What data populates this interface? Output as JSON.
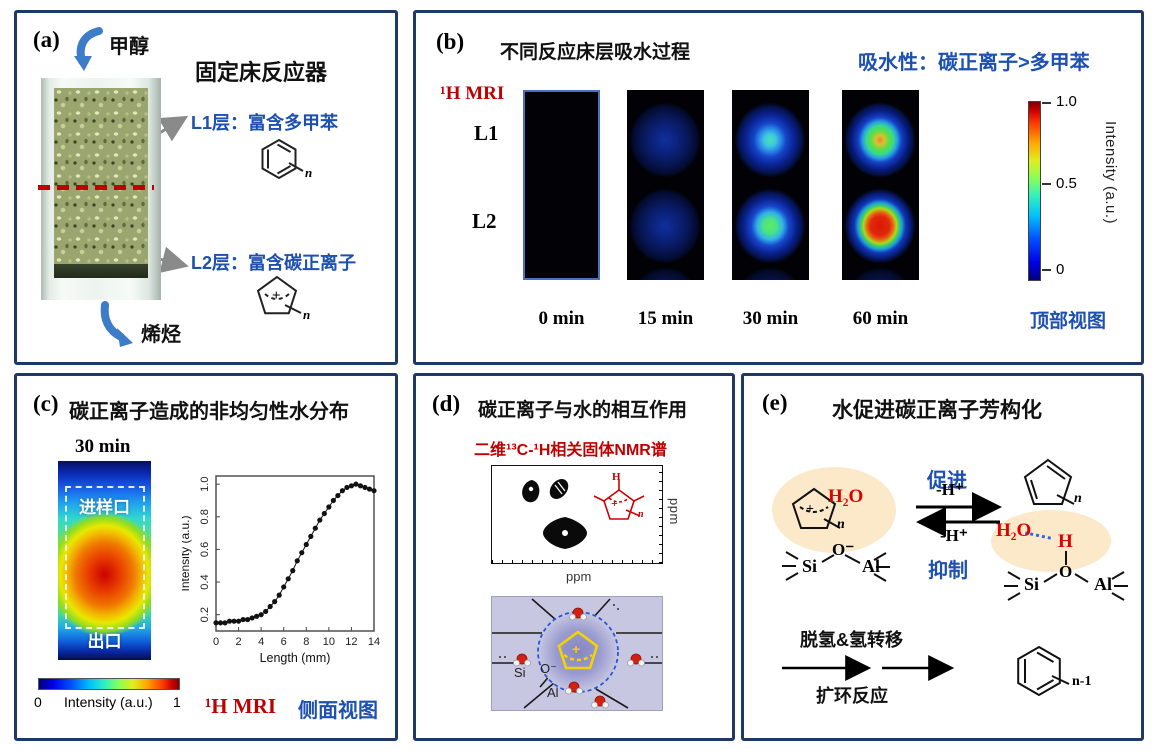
{
  "colors": {
    "panel_border": "#1f3864",
    "blue_text": "#1d50b0",
    "red_text": "#c00000",
    "h2o_red": "#e00000",
    "peach_ellipse": "#fbe9ca",
    "lavender_box": "#c7c7e2",
    "arrow_blue": "#3d7cc9",
    "dashed_line_red": "#c00000"
  },
  "panels": {
    "a": {
      "label": "(a)",
      "inlet": "甲醇",
      "title": "固定床反应器",
      "layer1": "L1层：富含多甲苯",
      "layer2": "L2层：富含碳正离子",
      "outlet": "烯烃",
      "benzene_n": "n",
      "cation_plus": "+",
      "cation_n": "n"
    },
    "b": {
      "label": "(b)",
      "title": "不同反应床层吸水过程",
      "annotation": "吸水性：碳正离子>多甲苯",
      "mri": "¹H MRI",
      "rows": [
        "L1",
        "L2"
      ],
      "times": [
        "0 min",
        "15 min",
        "30 min",
        "60 min"
      ],
      "colorbar": {
        "ticks": [
          "1.0",
          "0.5",
          "0"
        ],
        "label": "Intensity (a.u.)"
      },
      "view": "顶部视图"
    },
    "c": {
      "label": "(c)",
      "title": "碳正离子造成的非均匀性水分布",
      "time": "30 min",
      "inlet": "进样口",
      "outlet": "出口",
      "colorbar": {
        "min": "0",
        "label": "Intensity (a.u.)",
        "max": "1"
      },
      "mri": "¹H MRI",
      "view": "侧面视图"
    },
    "d": {
      "label": "(d)",
      "title": "碳正离子与水的相互作用",
      "subtitle": "二维¹³C-¹H相关固体NMR谱",
      "ppm_x": "ppm",
      "ppm_y": "ppm",
      "structure": {
        "h": "H",
        "plus": "+",
        "n": "n"
      },
      "cartoon": {
        "si": "Si",
        "o": "O⁻",
        "al": "Al",
        "plus": "+"
      }
    },
    "e": {
      "label": "(e)",
      "title": "水促进碳正离子芳构化",
      "promote": "促进",
      "inhibit": "抑制",
      "deproton_top": "-H⁺",
      "deproton_bottom": "-H⁺",
      "left": {
        "h2o": "H₂O",
        "plus": "+",
        "n": "n",
        "o": "O⁻",
        "si": "Si",
        "al": "Al"
      },
      "right": {
        "h2o": "H₂O",
        "h": "H",
        "n": "n",
        "si": "Si",
        "o": "O",
        "al": "Al"
      },
      "bottom": {
        "line1": "脱氢&氢转移",
        "line2": "扩环反应",
        "product_n": "n-1"
      }
    }
  },
  "chart_data": {
    "type": "scatter",
    "title": "",
    "xlabel": "Length (mm)",
    "ylabel": "Intensity (a.u.)",
    "xlim": [
      0,
      14
    ],
    "ylim": [
      0.1,
      1.05
    ],
    "xticks": [
      0,
      2,
      4,
      6,
      8,
      10,
      12,
      14
    ],
    "yticks": [
      0.2,
      0.4,
      0.6,
      0.8,
      1.0
    ],
    "x": [
      0,
      0.4,
      0.8,
      1.2,
      1.6,
      2,
      2.4,
      2.8,
      3.2,
      3.6,
      4,
      4.4,
      4.8,
      5.2,
      5.6,
      6,
      6.4,
      6.8,
      7.2,
      7.6,
      8,
      8.4,
      8.8,
      9.2,
      9.6,
      10,
      10.4,
      10.8,
      11.2,
      11.6,
      12,
      12.4,
      12.8,
      13.2,
      13.6,
      14
    ],
    "y": [
      0.15,
      0.15,
      0.15,
      0.16,
      0.16,
      0.16,
      0.17,
      0.17,
      0.18,
      0.19,
      0.2,
      0.22,
      0.25,
      0.28,
      0.32,
      0.37,
      0.42,
      0.47,
      0.53,
      0.58,
      0.63,
      0.68,
      0.73,
      0.78,
      0.82,
      0.86,
      0.9,
      0.93,
      0.96,
      0.98,
      0.99,
      1.0,
      0.99,
      0.98,
      0.97,
      0.96
    ]
  }
}
